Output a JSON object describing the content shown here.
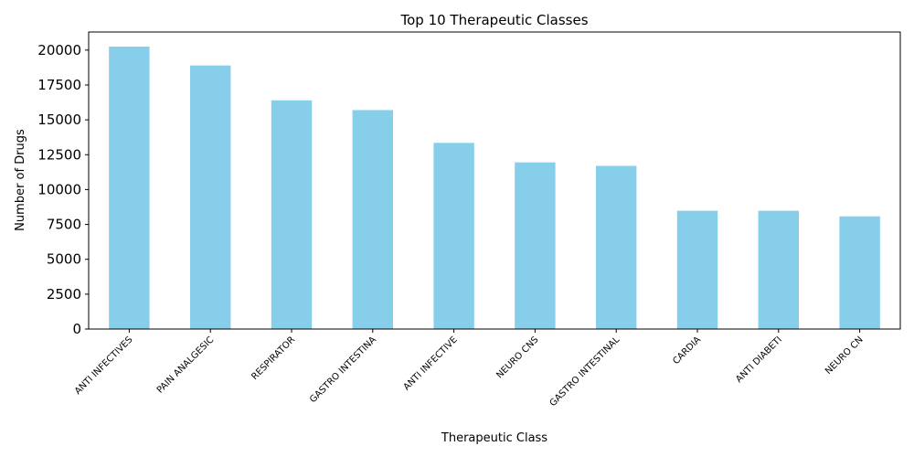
{
  "chart_data": {
    "type": "bar",
    "title": "Top 10 Therapeutic Classes",
    "xlabel": "Therapeutic Class",
    "ylabel": "Number of Drugs",
    "categories": [
      "ANTI INFECTIVES",
      "PAIN ANALGESIC",
      "RESPIRATOR",
      "GASTRO INTESTINA",
      "ANTI INFECTIVE",
      "NEURO CNS",
      "GASTRO INTESTINAL",
      "CARDIA",
      "ANTI DIABETI",
      "NEURO CN"
    ],
    "values": [
      20250,
      18900,
      16400,
      15700,
      13350,
      11950,
      11700,
      8480,
      8480,
      8080
    ],
    "ylim": [
      0,
      21300
    ],
    "yticks": [
      0,
      2500,
      5000,
      7500,
      10000,
      12500,
      15000,
      17500,
      20000
    ],
    "bar_color": "#87CEEB",
    "grid": false,
    "legend": "none"
  }
}
